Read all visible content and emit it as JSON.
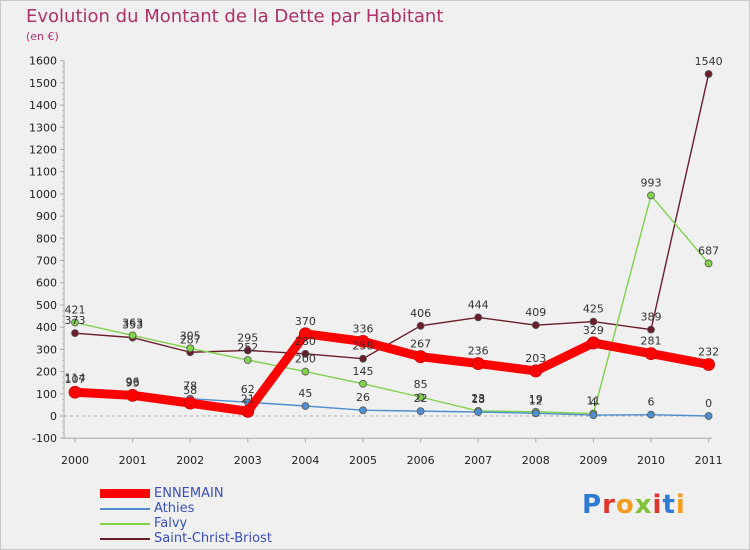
{
  "title": "Evolution du Montant de la Dette par Habitant",
  "unit": "(en €)",
  "logo": "Proxiti",
  "chart_data": {
    "type": "line",
    "x": [
      "2000",
      "2001",
      "2002",
      "2003",
      "2004",
      "2005",
      "2006",
      "2007",
      "2008",
      "2009",
      "2010",
      "2011"
    ],
    "ylim": [
      -100,
      1600
    ],
    "yticks": [
      -100,
      0,
      100,
      200,
      300,
      400,
      500,
      600,
      700,
      800,
      900,
      1000,
      1100,
      1200,
      1300,
      1400,
      1500,
      1600
    ],
    "grid": false,
    "legend_position": "bottom-left",
    "series": [
      {
        "name": "ENNEMAIN",
        "color": "#ff0000",
        "values": [
          107,
          93,
          58,
          21,
          370,
          336,
          267,
          236,
          203,
          329,
          281,
          232
        ],
        "labels": [
          "107",
          "93",
          "58",
          "21",
          "370",
          "336",
          "267",
          "236",
          "203",
          "329",
          "281",
          "232"
        ]
      },
      {
        "name": "Athies",
        "color": "#4f8fd0",
        "values": [
          114,
          96,
          78,
          62,
          45,
          26,
          22,
          18,
          12,
          4,
          6,
          0
        ],
        "labels": [
          "114",
          "96",
          "78",
          "62",
          "45",
          "26",
          "22",
          "18",
          "12",
          "4",
          "6",
          "0"
        ]
      },
      {
        "name": "Falvy",
        "color": "#7fd24a",
        "values": [
          421,
          363,
          305,
          252,
          200,
          145,
          85,
          23,
          19,
          11,
          993,
          687
        ],
        "labels": [
          "421",
          "363",
          "305",
          "252",
          "200",
          "145",
          "85",
          "23",
          "19",
          "11",
          "993",
          "687"
        ]
      },
      {
        "name": "Saint-Christ-Briost",
        "color": "#6b1d2a",
        "values": [
          373,
          353,
          287,
          295,
          280,
          258,
          406,
          444,
          409,
          425,
          389,
          1540
        ],
        "labels": [
          "373",
          "353",
          "287",
          "295",
          "280",
          "258",
          "406",
          "444",
          "409",
          "425",
          "389",
          "1540"
        ]
      }
    ]
  }
}
